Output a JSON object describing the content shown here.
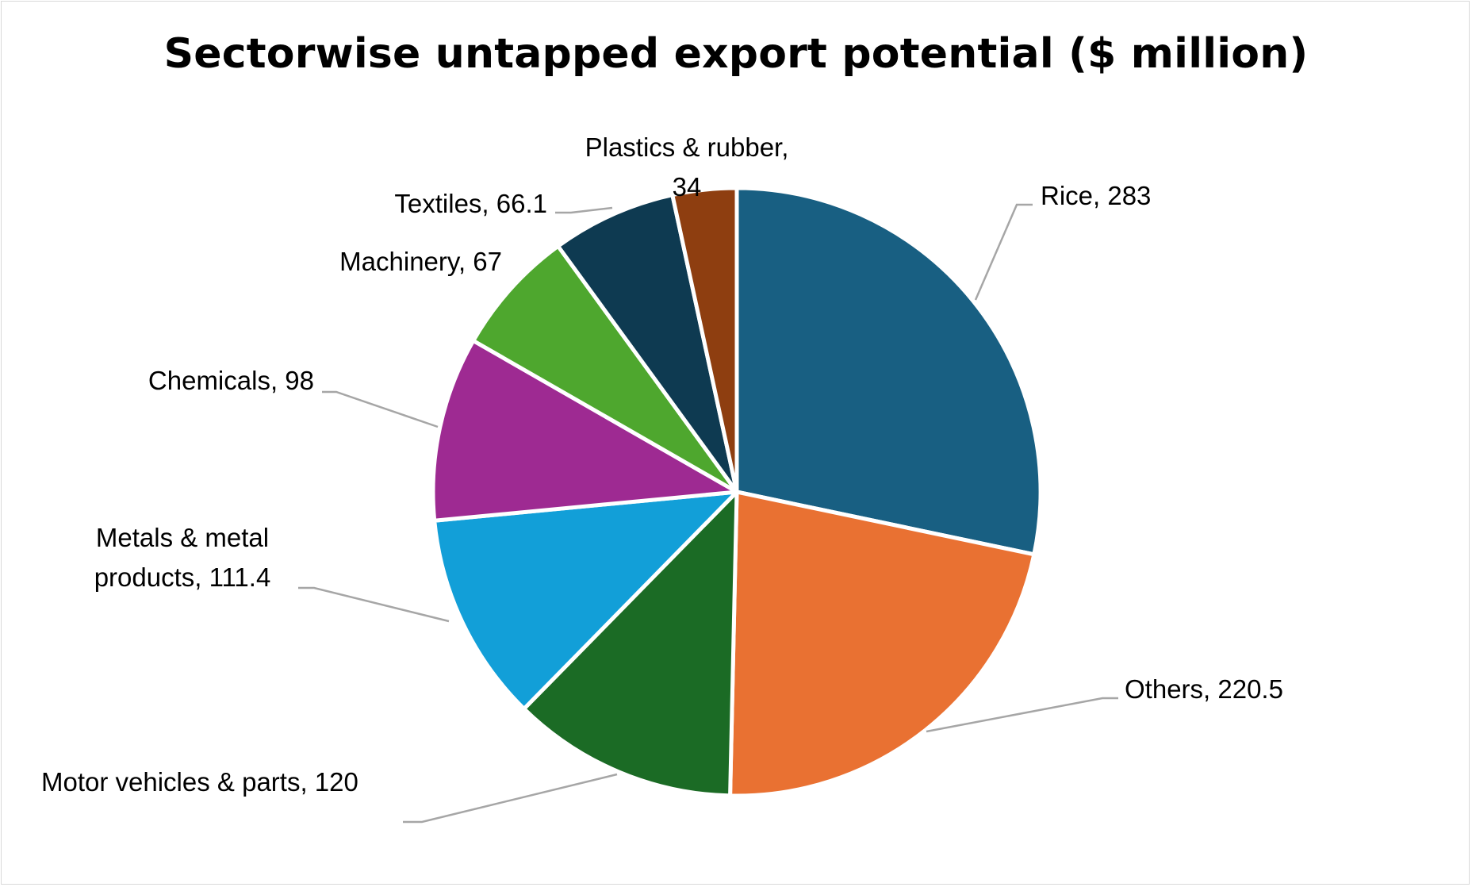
{
  "chart_data": {
    "type": "pie",
    "title": "Sectorwise untapped export potential ($ million)",
    "start_angle_deg": 0,
    "direction": "clockwise",
    "slices": [
      {
        "label": "Rice",
        "value": 283,
        "color": "#185F82",
        "data_label": [
          "Rice, 283"
        ]
      },
      {
        "label": "Others",
        "value": 220.5,
        "color": "#E97132",
        "data_label": [
          "Others, 220.5"
        ]
      },
      {
        "label": "Motor vehicles & parts",
        "value": 120,
        "color": "#1B6B25",
        "data_label": [
          "Motor vehicles & parts, 120"
        ]
      },
      {
        "label": "Metals & metal products",
        "value": 111.4,
        "color": "#129FD8",
        "data_label": [
          "Metals & metal",
          "products, 111.4"
        ]
      },
      {
        "label": "Chemicals",
        "value": 98,
        "color": "#9E2A92",
        "data_label": [
          "Chemicals, 98"
        ]
      },
      {
        "label": "Machinery",
        "value": 67,
        "color": "#4EA72E",
        "data_label": [
          "Machinery, 67"
        ]
      },
      {
        "label": "Textiles",
        "value": 66.1,
        "color": "#0E3A51",
        "data_label": [
          "Textiles, 66.1"
        ]
      },
      {
        "label": "Plastics & rubber",
        "value": 34,
        "color": "#8E3E10",
        "data_label": [
          "Plastics & rubber,",
          "34"
        ]
      }
    ],
    "leader_line_color": "#A6A6A6",
    "slice_border_color": "#FFFFFF"
  }
}
